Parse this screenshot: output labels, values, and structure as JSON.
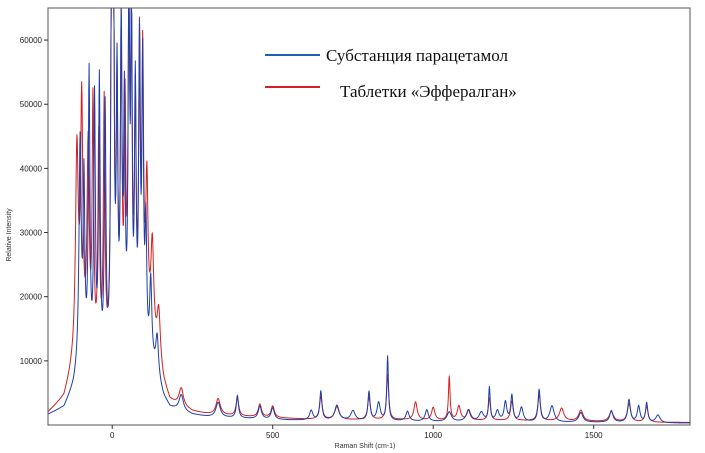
{
  "chart_data": {
    "type": "line",
    "title": "",
    "xlabel": "Raman Shift (cm-1)",
    "ylabel": "Relative Intensity",
    "xlim": [
      -200,
      1800
    ],
    "ylim": [
      0,
      65000
    ],
    "grid": false,
    "legend_position": "top-right",
    "x_ticks": [
      0,
      500,
      1000,
      1500
    ],
    "y_ticks": [
      10000,
      20000,
      30000,
      40000,
      50000,
      60000
    ],
    "x_tick_labels": [
      "0",
      "500",
      "1000",
      "1500"
    ],
    "y_tick_labels": [
      "10000",
      "20000",
      "30000",
      "40000",
      "50000",
      "60000"
    ],
    "series": [
      {
        "name": "Субстанция парацетамол",
        "color": "#1f3fa8",
        "baseline": [
          [
            -200,
            1500
          ],
          [
            -150,
            2500
          ],
          [
            -120,
            5500
          ],
          [
            -100,
            9000
          ],
          [
            -80,
            8500
          ],
          [
            -60,
            7500
          ],
          [
            -40,
            7000
          ],
          [
            -20,
            6500
          ],
          [
            0,
            6500
          ],
          [
            20,
            7000
          ],
          [
            40,
            7500
          ],
          [
            60,
            8000
          ],
          [
            80,
            8000
          ],
          [
            100,
            9000
          ],
          [
            120,
            9000
          ],
          [
            140,
            7000
          ],
          [
            160,
            4000
          ],
          [
            180,
            2500
          ],
          [
            200,
            2200
          ],
          [
            250,
            1500
          ],
          [
            300,
            1200
          ],
          [
            400,
            1000
          ],
          [
            500,
            800
          ],
          [
            600,
            700
          ],
          [
            700,
            700
          ],
          [
            800,
            600
          ],
          [
            900,
            600
          ],
          [
            1000,
            500
          ],
          [
            1200,
            500
          ],
          [
            1400,
            400
          ],
          [
            1600,
            400
          ],
          [
            1700,
            300
          ],
          [
            1800,
            300
          ]
        ],
        "peaks": [
          [
            -100,
            34000,
            4
          ],
          [
            -88,
            27000,
            3
          ],
          [
            -72,
            44500,
            3
          ],
          [
            -55,
            41000,
            3
          ],
          [
            -40,
            44000,
            3
          ],
          [
            -22,
            40000,
            3
          ],
          [
            -2,
            63000,
            3
          ],
          [
            4,
            64000,
            2.5
          ],
          [
            15,
            43000,
            3
          ],
          [
            28,
            51000,
            3
          ],
          [
            38,
            38000,
            3
          ],
          [
            52,
            55000,
            3
          ],
          [
            60,
            52000,
            2.5
          ],
          [
            72,
            41000,
            3
          ],
          [
            85,
            47000,
            3
          ],
          [
            95,
            44000,
            3
          ],
          [
            105,
            19000,
            3
          ],
          [
            120,
            12000,
            4
          ],
          [
            140,
            6000,
            5
          ],
          [
            215,
            2500,
            8
          ],
          [
            330,
            2300,
            8
          ],
          [
            390,
            3500,
            4
          ],
          [
            460,
            2000,
            6
          ],
          [
            500,
            1800,
            6
          ],
          [
            620,
            1500,
            6
          ],
          [
            650,
            4500,
            4
          ],
          [
            700,
            2300,
            8
          ],
          [
            750,
            1500,
            8
          ],
          [
            800,
            4500,
            4
          ],
          [
            830,
            2800,
            6
          ],
          [
            858,
            10000,
            3
          ],
          [
            920,
            1500,
            6
          ],
          [
            980,
            1800,
            6
          ],
          [
            1050,
            1500,
            8
          ],
          [
            1110,
            1800,
            8
          ],
          [
            1150,
            1400,
            8
          ],
          [
            1175,
            5200,
            3
          ],
          [
            1200,
            1600,
            6
          ],
          [
            1225,
            3000,
            5
          ],
          [
            1245,
            4000,
            4
          ],
          [
            1275,
            2200,
            6
          ],
          [
            1330,
            5000,
            4
          ],
          [
            1370,
            2500,
            8
          ],
          [
            1460,
            1500,
            8
          ],
          [
            1555,
            1800,
            6
          ],
          [
            1610,
            3500,
            5
          ],
          [
            1640,
            2500,
            5
          ],
          [
            1665,
            3000,
            4
          ],
          [
            1700,
            1200,
            8
          ]
        ]
      },
      {
        "name": "Таблетки «Эффералган»",
        "color": "#d42020",
        "baseline": [
          [
            -200,
            1800
          ],
          [
            -150,
            4000
          ],
          [
            -120,
            9000
          ],
          [
            -100,
            13000
          ],
          [
            -80,
            11000
          ],
          [
            -60,
            9000
          ],
          [
            -40,
            9500
          ],
          [
            -20,
            9000
          ],
          [
            0,
            9000
          ],
          [
            20,
            9500
          ],
          [
            40,
            10000
          ],
          [
            60,
            11000
          ],
          [
            80,
            12000
          ],
          [
            100,
            16000
          ],
          [
            120,
            14000
          ],
          [
            140,
            10000
          ],
          [
            160,
            6000
          ],
          [
            180,
            3500
          ],
          [
            200,
            3000
          ],
          [
            250,
            2000
          ],
          [
            300,
            1600
          ],
          [
            400,
            1300
          ],
          [
            500,
            1100
          ],
          [
            600,
            900
          ],
          [
            700,
            800
          ],
          [
            800,
            800
          ],
          [
            900,
            800
          ],
          [
            1000,
            700
          ],
          [
            1200,
            700
          ],
          [
            1400,
            600
          ],
          [
            1600,
            500
          ],
          [
            1700,
            400
          ],
          [
            1800,
            400
          ]
        ],
        "peaks": [
          [
            -110,
            31000,
            5
          ],
          [
            -95,
            36000,
            4
          ],
          [
            -75,
            31000,
            4
          ],
          [
            -60,
            39000,
            3
          ],
          [
            -42,
            33000,
            3
          ],
          [
            -25,
            39000,
            3
          ],
          [
            -2,
            61000,
            3
          ],
          [
            4,
            62000,
            2.5
          ],
          [
            15,
            38000,
            3
          ],
          [
            28,
            48000,
            3
          ],
          [
            40,
            35000,
            3
          ],
          [
            52,
            50000,
            3
          ],
          [
            60,
            46000,
            3
          ],
          [
            72,
            35000,
            3
          ],
          [
            85,
            43000,
            3
          ],
          [
            95,
            39000,
            3
          ],
          [
            108,
            21000,
            4
          ],
          [
            125,
            14000,
            5
          ],
          [
            145,
            8000,
            6
          ],
          [
            215,
            2800,
            8
          ],
          [
            330,
            2500,
            8
          ],
          [
            390,
            2800,
            5
          ],
          [
            460,
            2000,
            6
          ],
          [
            500,
            1800,
            6
          ],
          [
            650,
            3500,
            5
          ],
          [
            700,
            2000,
            8
          ],
          [
            800,
            3500,
            5
          ],
          [
            858,
            7000,
            4
          ],
          [
            945,
            2800,
            6
          ],
          [
            1000,
            2000,
            6
          ],
          [
            1050,
            6800,
            3
          ],
          [
            1080,
            2200,
            6
          ],
          [
            1110,
            1500,
            6
          ],
          [
            1175,
            3500,
            4
          ],
          [
            1245,
            3000,
            5
          ],
          [
            1330,
            4000,
            5
          ],
          [
            1400,
            2000,
            8
          ],
          [
            1460,
            1700,
            8
          ],
          [
            1555,
            1500,
            8
          ],
          [
            1610,
            2800,
            6
          ],
          [
            1665,
            2500,
            5
          ]
        ]
      }
    ]
  }
}
